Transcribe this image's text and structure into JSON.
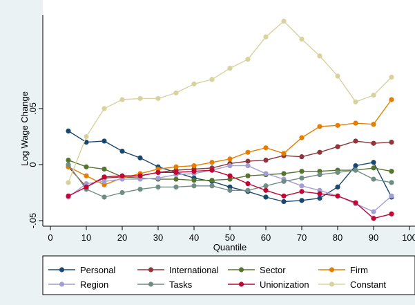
{
  "chart_data": {
    "type": "line",
    "title": "",
    "xlabel": "Quantile",
    "ylabel": "Log Wage Change",
    "xlim": [
      0,
      100
    ],
    "ylim": [
      -0.05,
      0.13
    ],
    "xticks": [
      "0",
      "10",
      "20",
      "30",
      "40",
      "50",
      "60",
      "70",
      "80",
      "90",
      "100"
    ],
    "yticks": [
      {
        "value": -0.05,
        "label": "-.05"
      },
      {
        "value": 0,
        "label": "0"
      },
      {
        "value": 0.05,
        "label": ".05"
      }
    ],
    "grid": false,
    "legend_position": "bottom",
    "x": [
      5,
      10,
      15,
      20,
      25,
      30,
      35,
      40,
      45,
      50,
      55,
      60,
      65,
      70,
      75,
      80,
      85,
      90,
      95
    ],
    "series": [
      {
        "name": "Personal",
        "color": "#1a476f",
        "values": [
          0.03,
          0.02,
          0.021,
          0.012,
          0.006,
          -0.002,
          -0.007,
          -0.012,
          -0.015,
          -0.02,
          -0.024,
          -0.029,
          -0.033,
          -0.032,
          -0.03,
          -0.02,
          -0.001,
          0.002,
          -0.029
        ]
      },
      {
        "name": "International",
        "color": "#90353b",
        "values": [
          -0.002,
          -0.02,
          -0.012,
          -0.011,
          -0.01,
          -0.007,
          -0.005,
          -0.004,
          -0.003,
          0.001,
          0.003,
          0.004,
          0.008,
          0.007,
          0.011,
          0.016,
          0.021,
          0.019,
          0.02
        ]
      },
      {
        "name": "Sector",
        "color": "#55752f",
        "values": [
          0.004,
          -0.002,
          -0.004,
          -0.011,
          -0.012,
          -0.013,
          -0.013,
          -0.014,
          -0.014,
          -0.013,
          -0.01,
          -0.009,
          -0.008,
          -0.006,
          -0.006,
          -0.005,
          -0.005,
          -0.003,
          -0.006
        ]
      },
      {
        "name": "Firm",
        "color": "#e37e00",
        "values": [
          -0.002,
          -0.01,
          -0.018,
          -0.012,
          -0.008,
          -0.004,
          -0.002,
          -0.001,
          0.002,
          0.005,
          0.011,
          0.015,
          0.01,
          0.024,
          0.034,
          0.035,
          0.037,
          0.036,
          0.058
        ]
      },
      {
        "name": "Region",
        "color": "#a39fd4",
        "values": [
          -0.029,
          -0.017,
          -0.015,
          -0.013,
          -0.013,
          -0.012,
          -0.009,
          -0.008,
          -0.005,
          -0.001,
          -0.001,
          -0.008,
          -0.013,
          -0.019,
          -0.023,
          -0.028,
          -0.035,
          -0.042,
          -0.028
        ]
      },
      {
        "name": "Tasks",
        "color": "#6e8e84",
        "values": [
          0.0,
          -0.022,
          -0.029,
          -0.025,
          -0.022,
          -0.02,
          -0.02,
          -0.019,
          -0.019,
          -0.023,
          -0.023,
          -0.019,
          -0.015,
          -0.012,
          -0.009,
          -0.007,
          -0.005,
          -0.013,
          -0.016
        ]
      },
      {
        "name": "Unionization",
        "color": "#c10534",
        "values": [
          -0.028,
          -0.02,
          -0.011,
          -0.01,
          -0.01,
          -0.007,
          -0.007,
          -0.006,
          -0.005,
          -0.01,
          -0.017,
          -0.023,
          -0.028,
          -0.024,
          -0.026,
          -0.028,
          -0.034,
          -0.048,
          -0.044
        ]
      },
      {
        "name": "Constant",
        "color": "#d7d29e",
        "values": [
          -0.016,
          0.025,
          0.05,
          0.058,
          0.059,
          0.059,
          0.064,
          0.072,
          0.076,
          0.086,
          0.094,
          0.114,
          0.128,
          0.112,
          0.097,
          0.079,
          0.056,
          0.062,
          0.078
        ]
      }
    ]
  }
}
